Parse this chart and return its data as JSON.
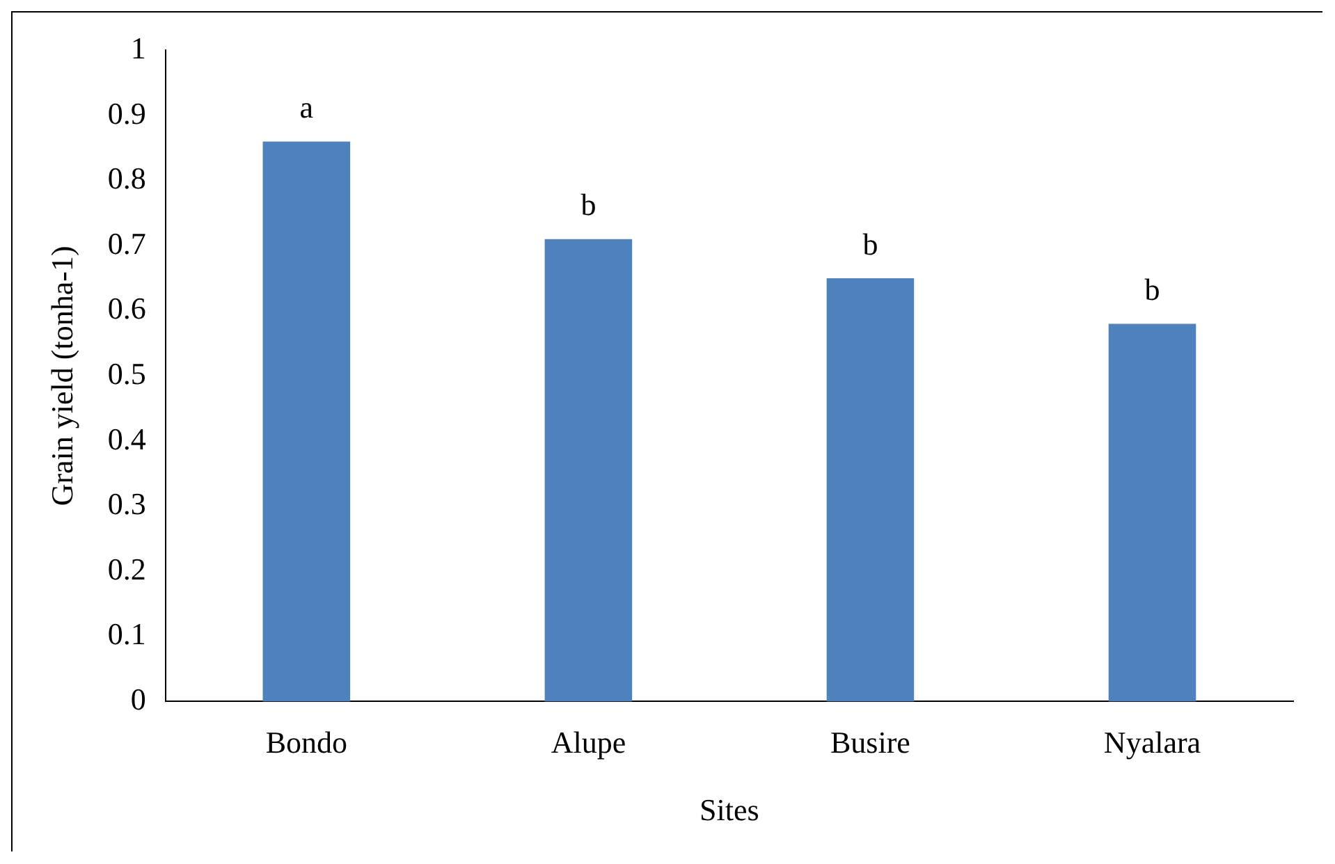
{
  "chart_data": {
    "type": "bar",
    "xlabel": "Sites",
    "ylabel": "Grain yield (tonha-1)",
    "categories": [
      "Bondo",
      "Alupe",
      "Busire",
      "Nyalara"
    ],
    "values": [
      0.86,
      0.71,
      0.65,
      0.58
    ],
    "color": "#4f81bd",
    "ylim": [
      0,
      1
    ],
    "yticks": [
      0,
      0.1,
      0.2,
      0.3,
      0.4,
      0.5,
      0.6,
      0.7,
      0.8,
      0.9,
      1
    ],
    "grid": false,
    "legend": false,
    "annotations": [
      {
        "text": "a",
        "x": "Bondo",
        "y": 0.86
      },
      {
        "text": "b",
        "x": "Alupe",
        "y": 0.71
      },
      {
        "text": "b",
        "x": "Busire",
        "y": 0.65
      },
      {
        "text": "b",
        "x": "Nyalara",
        "y": 0.58
      }
    ]
  }
}
